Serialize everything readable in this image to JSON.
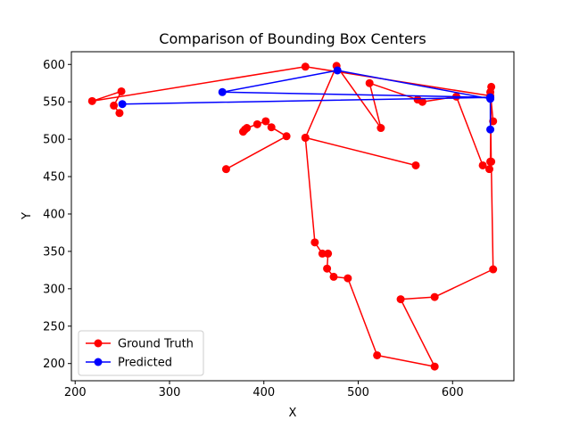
{
  "chart_data": {
    "type": "line",
    "title": "Comparison of Bounding Box Centers",
    "xlabel": "X",
    "ylabel": "Y",
    "xlim": [
      196,
      665
    ],
    "ylim": [
      177,
      617
    ],
    "xticks": [
      200,
      300,
      400,
      500,
      600
    ],
    "yticks": [
      200,
      250,
      300,
      350,
      400,
      450,
      500,
      550,
      600
    ],
    "grid": false,
    "legend_position": "lower-left",
    "series": [
      {
        "name": "Ground Truth",
        "color": "#ff0000",
        "marker": "circle",
        "points": [
          [
            643,
            524
          ],
          [
            640,
            563
          ],
          [
            641,
            570
          ],
          [
            640,
            470
          ],
          [
            639,
            460
          ],
          [
            632,
            465
          ],
          [
            604,
            557
          ],
          [
            568,
            550
          ],
          [
            563,
            553
          ],
          [
            512,
            575
          ],
          [
            524,
            515
          ],
          [
            477,
            598
          ],
          [
            444,
            502
          ],
          [
            454,
            362
          ],
          [
            462,
            347
          ],
          [
            468,
            347
          ],
          [
            467,
            327
          ],
          [
            474,
            316
          ],
          [
            489,
            314
          ],
          [
            520,
            211
          ],
          [
            581,
            196
          ],
          [
            545,
            286
          ],
          [
            581,
            289
          ],
          [
            643,
            326
          ],
          [
            641,
            470
          ],
          [
            640,
            555
          ],
          [
            640,
            558
          ],
          [
            444,
            597
          ],
          [
            218,
            551
          ],
          [
            249,
            564
          ],
          [
            241,
            545
          ],
          [
            247,
            535
          ]
        ]
      },
      {
        "name": "Predicted",
        "color": "#0000ff",
        "marker": "circle",
        "points": [
          [
            640,
            513
          ],
          [
            640,
            554
          ],
          [
            478,
            592
          ],
          [
            356,
            563
          ],
          [
            640,
            556
          ],
          [
            250,
            547
          ]
        ]
      },
      {
        "name": "",
        "color": "#ff0000",
        "marker": "circle",
        "points": [
          [
            360,
            460
          ],
          [
            424,
            504
          ],
          [
            408,
            516
          ],
          [
            402,
            524
          ],
          [
            393,
            520
          ],
          [
            382,
            515
          ],
          [
            378,
            510
          ],
          [
            380,
            513
          ]
        ]
      },
      {
        "name": "",
        "color": "#ff0000",
        "marker": "circle",
        "points": [
          [
            561,
            465
          ],
          [
            444,
            502
          ]
        ]
      }
    ]
  }
}
